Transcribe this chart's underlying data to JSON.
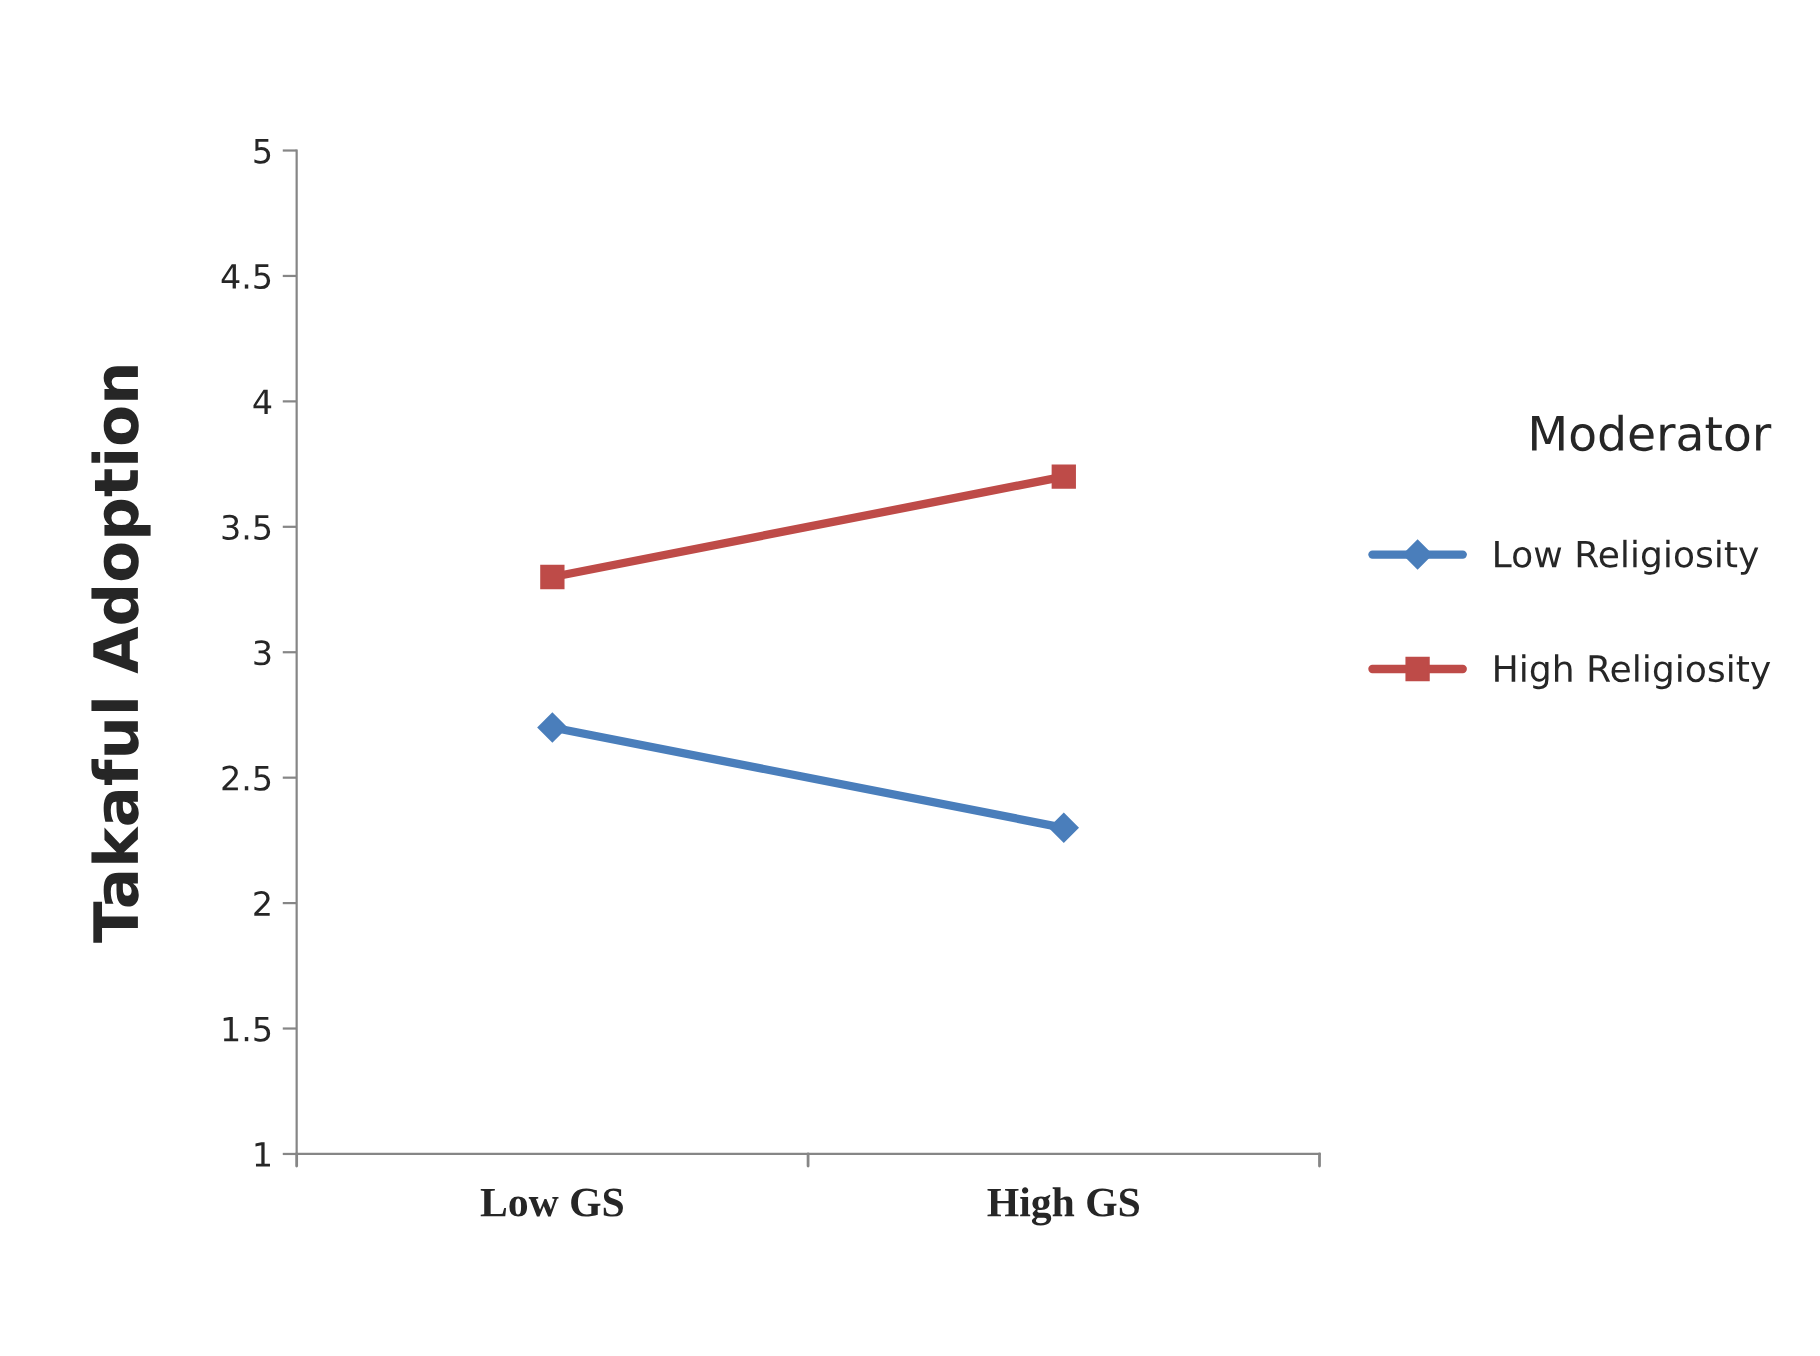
{
  "chart_data": {
    "type": "line",
    "ylabel": "Takaful Adoption",
    "legend_title": "Moderator",
    "categories": [
      "Low GS",
      "High GS"
    ],
    "series": [
      {
        "name": "Low Religiosity",
        "color": "#4a7ebb",
        "values": [
          2.7,
          2.3
        ],
        "marker": "diamond"
      },
      {
        "name": "High Religiosity",
        "color": "#be4b48",
        "values": [
          3.3,
          3.7
        ],
        "marker": "square"
      }
    ],
    "ylim": [
      1,
      5
    ],
    "yticks": [
      1,
      1.5,
      2,
      2.5,
      3,
      3.5,
      4,
      4.5,
      5
    ],
    "grid": false,
    "legend": "right",
    "line_style": "solid"
  }
}
